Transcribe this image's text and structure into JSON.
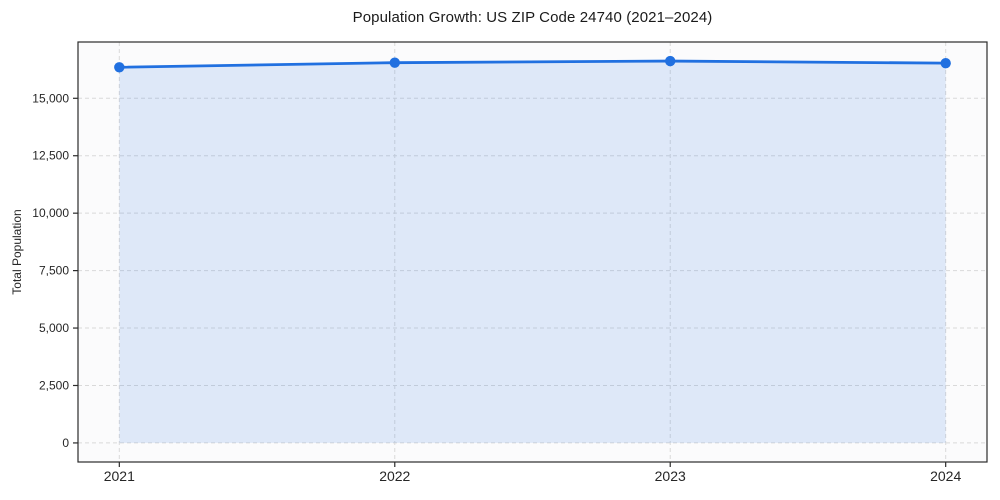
{
  "chart_data": {
    "type": "area",
    "title": "Population Growth: US ZIP Code 24740 (2021–2024)",
    "xlabel": "",
    "ylabel": "Total Population",
    "x": [
      2021,
      2022,
      2023,
      2024
    ],
    "x_tick_labels": [
      "2021",
      "2022",
      "2023",
      "2024"
    ],
    "series": [
      {
        "name": "Total Population",
        "values": [
          16350,
          16550,
          16620,
          16530
        ]
      }
    ],
    "fill_baseline": 0,
    "y_ticks": [
      0,
      2500,
      5000,
      7500,
      10000,
      12500,
      15000
    ],
    "y_tick_labels": [
      "0",
      "2,500",
      "5,000",
      "7,500",
      "10,000",
      "12,500",
      "15,000"
    ],
    "xlim": [
      2020.85,
      2024.15
    ],
    "ylim": [
      -830,
      17450
    ],
    "grid": true,
    "grid_style": "dashed",
    "legend_position": "none",
    "marker": "circle",
    "colors": {
      "line": "#2170e0",
      "marker": "#2170e0",
      "fill": "rgba(33, 112, 224, 0.13)",
      "grid": "#d9d9d9",
      "spine": "#2b2b2b",
      "tick_text": "#262626",
      "title_text": "#1a1a1a",
      "plot_bg": "#fbfbfc",
      "figure_bg": "#ffffff"
    }
  }
}
